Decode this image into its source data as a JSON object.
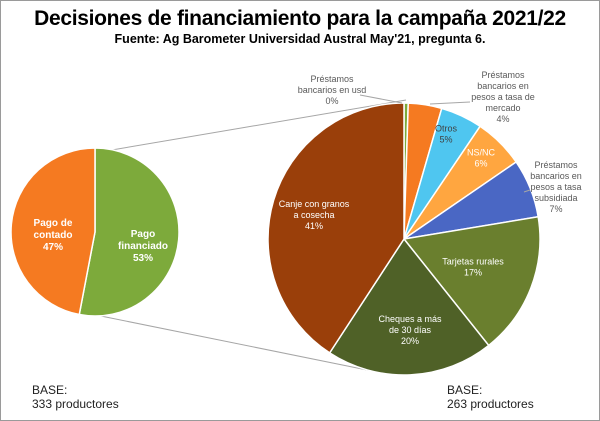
{
  "chart_data": [
    {
      "type": "pie",
      "name": "base-pie",
      "categories": [
        "Pago de contado",
        "Pago financiado"
      ],
      "values": [
        47,
        53
      ],
      "labels": [
        [
          "Pago de",
          "contado",
          "47%"
        ],
        [
          "Pago",
          "financiado",
          "53%"
        ]
      ],
      "colors": [
        "#F57A21",
        "#7DAA3B"
      ],
      "base_label": "BASE:",
      "base_value": "333 productores"
    },
    {
      "type": "pie",
      "name": "detail-pie",
      "categories": [
        "Préstamos bancarios en usd",
        "Préstamos bancarios en pesos a tasa de mercado",
        "Otros",
        "NS/NC",
        "Préstamos bancarios en pesos a tasa subsidiada",
        "Tarjetas rurales",
        "Cheques a más de 30 días",
        "Canje con granos a cosecha"
      ],
      "values": [
        0.5,
        4,
        5,
        6,
        7,
        17,
        20,
        41
      ],
      "labels": [
        [
          "Préstamos",
          "bancarios en usd",
          "0%"
        ],
        [
          "Préstamos",
          "bancarios en",
          "pesos a tasa de",
          "mercado",
          "4%"
        ],
        [
          "Otros",
          "5%"
        ],
        [
          "NS/NC",
          "6%"
        ],
        [
          "Préstamos",
          "bancarios en",
          "pesos a tasa",
          "subsidiada",
          "7%"
        ],
        [
          "Tarjetas rurales",
          "17%"
        ],
        [
          "Cheques a más",
          "de 30 días",
          "20%"
        ],
        [
          "Canje con granos",
          "a cosecha",
          "41%"
        ]
      ],
      "colors": [
        "#7DAA3B",
        "#F57A21",
        "#4FC6F0",
        "#FFA640",
        "#4A67C4",
        "#6A7F2E",
        "#4F6127",
        "#9A3F0A"
      ],
      "base_label": "BASE:",
      "base_value": "263 productores"
    }
  ],
  "title": "Decisiones de financiamiento para la campaña 2021/22",
  "subtitle": "Fuente: Ag Barometer Universidad Austral May'21, pregunta 6."
}
